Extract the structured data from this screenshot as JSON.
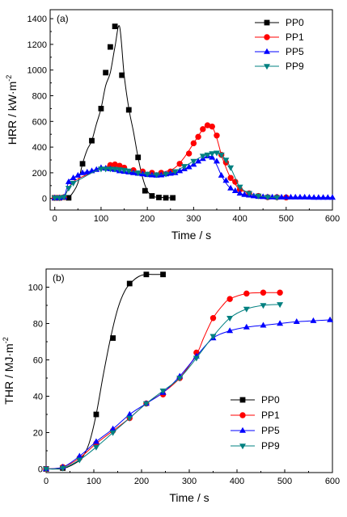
{
  "chart_data": [
    {
      "type": "line",
      "panel_label": "(a)",
      "xlabel": "Time / s",
      "ylabel_main": "HRR / kW·m",
      "ylabel_sup": "-2",
      "xlim": [
        -10,
        600
      ],
      "ylim": [
        -90,
        1470
      ],
      "xticks": [
        0,
        100,
        200,
        300,
        400,
        500,
        600
      ],
      "yticks": [
        0,
        200,
        400,
        600,
        800,
        1000,
        1200,
        1400
      ],
      "legend_position": "top-right",
      "series": [
        {
          "name": "PP0",
          "color": "#000000",
          "marker": "square",
          "x": [
            0,
            10,
            20,
            30,
            40,
            50,
            60,
            70,
            80,
            90,
            100,
            110,
            120,
            130,
            140,
            150,
            160,
            170,
            180,
            190,
            200,
            210,
            220,
            230,
            240,
            250
          ],
          "y": [
            5,
            5,
            10,
            10,
            50,
            120,
            270,
            380,
            450,
            580,
            700,
            880,
            980,
            1180,
            1340,
            960,
            700,
            520,
            320,
            160,
            60,
            20,
            10,
            8,
            5,
            5
          ],
          "markers_x": [
            0,
            10,
            30,
            60,
            80,
            100,
            110,
            120,
            130,
            145,
            160,
            180,
            195,
            210,
            225,
            240,
            255
          ],
          "markers_y": [
            5,
            5,
            5,
            270,
            450,
            700,
            980,
            1180,
            1340,
            960,
            690,
            320,
            60,
            20,
            8,
            5,
            5
          ]
        },
        {
          "name": "PP1",
          "color": "#ff0000",
          "marker": "circle",
          "x": [
            0,
            10,
            20,
            30,
            40,
            60,
            80,
            100,
            120,
            130,
            140,
            160,
            180,
            200,
            220,
            240,
            260,
            280,
            300,
            320,
            330,
            340,
            350,
            360,
            370,
            380,
            390,
            400,
            420,
            440,
            460,
            480,
            500
          ],
          "y": [
            5,
            5,
            10,
            80,
            130,
            170,
            200,
            230,
            260,
            265,
            255,
            225,
            210,
            200,
            200,
            210,
            240,
            320,
            430,
            540,
            570,
            560,
            470,
            340,
            240,
            160,
            110,
            70,
            40,
            20,
            10,
            10,
            8
          ],
          "markers_x": [
            0,
            10,
            20,
            120,
            130,
            140,
            150,
            170,
            190,
            210,
            230,
            250,
            270,
            290,
            300,
            310,
            320,
            330,
            340,
            350,
            360,
            370,
            380,
            390,
            400,
            420,
            440,
            460,
            480,
            500
          ],
          "markers_y": [
            5,
            5,
            10,
            260,
            265,
            255,
            240,
            220,
            210,
            200,
            200,
            210,
            270,
            350,
            430,
            480,
            540,
            570,
            560,
            490,
            340,
            280,
            160,
            130,
            70,
            40,
            20,
            10,
            10,
            8
          ]
        },
        {
          "name": "PP5",
          "color": "#0000ff",
          "marker": "triangle-up",
          "x": [
            0,
            10,
            20,
            30,
            40,
            60,
            80,
            100,
            120,
            140,
            160,
            180,
            200,
            220,
            240,
            260,
            280,
            300,
            320,
            330,
            340,
            350,
            360,
            370,
            380,
            400,
            420,
            440,
            460,
            480,
            500,
            520,
            540,
            560,
            580,
            600
          ],
          "y": [
            5,
            5,
            10,
            130,
            160,
            200,
            215,
            240,
            230,
            215,
            205,
            195,
            185,
            180,
            190,
            200,
            230,
            265,
            310,
            330,
            320,
            260,
            180,
            120,
            80,
            40,
            25,
            15,
            12,
            10,
            10,
            10,
            10,
            8,
            8,
            8
          ],
          "markers_x": [
            0,
            10,
            20,
            30,
            40,
            50,
            60,
            70,
            80,
            90,
            100,
            110,
            120,
            130,
            140,
            150,
            160,
            170,
            180,
            190,
            200,
            210,
            220,
            230,
            240,
            250,
            260,
            270,
            280,
            290,
            300,
            310,
            320,
            330,
            340,
            350,
            360,
            370,
            380,
            390,
            400,
            410,
            420,
            430,
            440,
            450,
            460,
            470,
            480,
            490,
            500,
            510,
            520,
            530,
            540,
            550,
            560,
            570,
            580,
            590,
            600
          ],
          "markers_y": [
            5,
            5,
            10,
            130,
            160,
            180,
            200,
            205,
            215,
            225,
            240,
            235,
            230,
            225,
            215,
            210,
            205,
            200,
            195,
            190,
            185,
            182,
            180,
            182,
            190,
            195,
            200,
            215,
            230,
            245,
            265,
            290,
            310,
            330,
            320,
            290,
            180,
            140,
            80,
            60,
            40,
            30,
            25,
            20,
            15,
            13,
            12,
            11,
            10,
            10,
            10,
            10,
            10,
            10,
            10,
            9,
            8,
            8,
            8,
            8,
            8
          ]
        },
        {
          "name": "PP9",
          "color": "#008080",
          "marker": "triangle-down",
          "x": [
            0,
            10,
            20,
            30,
            40,
            60,
            80,
            100,
            120,
            140,
            160,
            180,
            200,
            220,
            240,
            260,
            280,
            300,
            320,
            340,
            350,
            360,
            370,
            380,
            390,
            400,
            420,
            440,
            460,
            480
          ],
          "y": [
            5,
            5,
            10,
            80,
            120,
            160,
            200,
            230,
            230,
            225,
            215,
            200,
            190,
            185,
            190,
            210,
            250,
            290,
            330,
            350,
            355,
            340,
            300,
            240,
            160,
            90,
            40,
            20,
            10,
            8
          ],
          "markers_x": [
            0,
            10,
            20,
            30,
            40,
            100,
            110,
            120,
            130,
            140,
            150,
            160,
            180,
            200,
            220,
            240,
            260,
            280,
            300,
            320,
            330,
            340,
            350,
            360,
            370,
            380,
            400,
            420,
            440,
            460,
            480
          ],
          "markers_y": [
            5,
            5,
            10,
            80,
            120,
            230,
            230,
            230,
            228,
            225,
            220,
            215,
            200,
            190,
            185,
            190,
            210,
            250,
            290,
            330,
            340,
            350,
            355,
            340,
            300,
            240,
            90,
            40,
            20,
            10,
            8
          ]
        }
      ]
    },
    {
      "type": "line",
      "panel_label": "(b)",
      "xlabel": "Time / s",
      "ylabel_main": "THR / MJ·m",
      "ylabel_sup": "-2",
      "xlim": [
        0,
        600
      ],
      "ylim": [
        -2,
        110
      ],
      "xticks": [
        0,
        100,
        200,
        300,
        400,
        500,
        600
      ],
      "yticks": [
        0,
        20,
        40,
        60,
        80,
        100
      ],
      "legend_position": "bottom-right",
      "series": [
        {
          "name": "PP0",
          "color": "#000000",
          "marker": "square",
          "x": [
            0,
            30,
            45,
            60,
            75,
            90,
            105,
            120,
            135,
            150,
            165,
            180,
            195,
            210,
            230,
            250
          ],
          "y": [
            0,
            0,
            1,
            3,
            6,
            14,
            30,
            52,
            72,
            88,
            98,
            103,
            106,
            107,
            107,
            107
          ],
          "markers_x": [
            0,
            35,
            105,
            140,
            175,
            210,
            245
          ],
          "markers_y": [
            0,
            0.5,
            30,
            72,
            102,
            107,
            107
          ]
        },
        {
          "name": "PP1",
          "color": "#ff0000",
          "marker": "circle",
          "x": [
            0,
            35,
            70,
            105,
            140,
            175,
            210,
            245,
            280,
            315,
            330,
            350,
            370,
            385,
            420,
            455,
            490
          ],
          "y": [
            0,
            1,
            6,
            14,
            21,
            28,
            36,
            42,
            50,
            63,
            72,
            83,
            90,
            93.5,
            96.5,
            97,
            97
          ],
          "markers_x": [
            0,
            35,
            70,
            105,
            140,
            175,
            210,
            245,
            280,
            315,
            350,
            385,
            420,
            455,
            490
          ],
          "markers_y": [
            0,
            1,
            6,
            14,
            21,
            28,
            36,
            41,
            50,
            64,
            83,
            93.5,
            96.5,
            97,
            97
          ]
        },
        {
          "name": "PP5",
          "color": "#0000ff",
          "marker": "triangle-up",
          "x": [
            0,
            35,
            70,
            105,
            140,
            175,
            210,
            245,
            280,
            315,
            350,
            385,
            420,
            455,
            490,
            525,
            560,
            595
          ],
          "y": [
            0,
            1,
            7,
            15,
            22,
            30,
            36,
            42,
            51,
            62,
            72,
            76,
            78,
            79,
            80,
            81,
            81.5,
            82
          ],
          "markers_x": [
            0,
            35,
            70,
            105,
            140,
            175,
            210,
            245,
            280,
            315,
            350,
            385,
            420,
            455,
            490,
            525,
            560,
            595
          ],
          "markers_y": [
            0,
            1,
            7,
            15,
            22,
            30,
            36,
            42,
            51,
            62,
            72,
            76,
            78,
            79,
            80,
            81,
            81.5,
            82
          ]
        },
        {
          "name": "PP9",
          "color": "#008080",
          "marker": "triangle-down",
          "x": [
            0,
            35,
            70,
            105,
            140,
            175,
            210,
            245,
            280,
            315,
            350,
            385,
            420,
            455,
            490
          ],
          "y": [
            0,
            0.5,
            5,
            12,
            20,
            28,
            36,
            43,
            50,
            61,
            73,
            83,
            88,
            90,
            90.5
          ],
          "markers_x": [
            0,
            35,
            70,
            105,
            140,
            175,
            210,
            245,
            280,
            315,
            350,
            385,
            420,
            455,
            490
          ],
          "markers_y": [
            0,
            0.5,
            5,
            12,
            20,
            28,
            36,
            43,
            50,
            61,
            73,
            83,
            88,
            90,
            90.5
          ]
        }
      ]
    }
  ]
}
